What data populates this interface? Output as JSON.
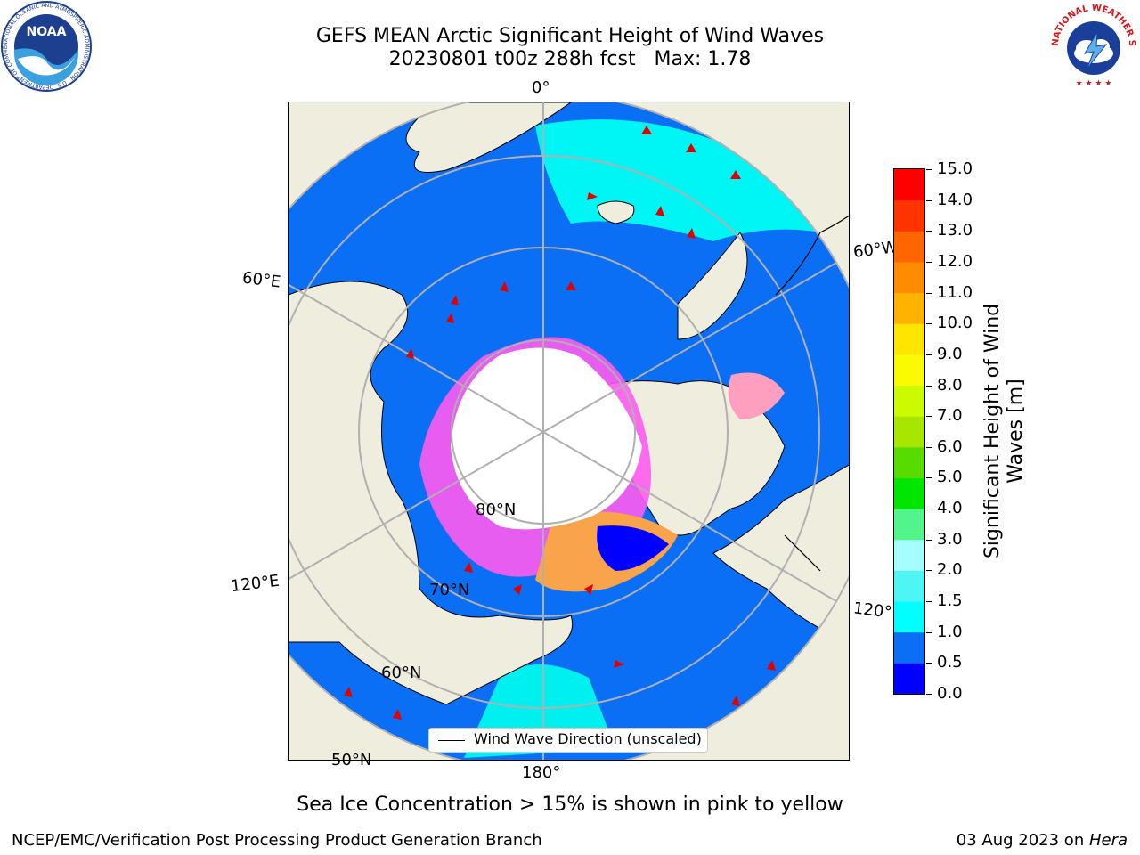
{
  "header": {
    "title_line1": "GEFS MEAN Arctic Significant Height of Wind Waves",
    "title_line2": "20230801 t00z 288h fcst   Max: 1.78"
  },
  "logos": {
    "left_name": "NOAA",
    "left_ring_text": "NATIONAL OCEANIC AND ATMOSPHERIC ADMINISTRATION · U.S. DEPARTMENT OF COMMERCE",
    "right_ring_text": "NATIONAL WEATHER SERVICE"
  },
  "map": {
    "longitude_labels": [
      "0°",
      "60°E",
      "60°W",
      "120°E",
      "120°W",
      "180°"
    ],
    "latitude_labels": [
      "80°N",
      "70°N",
      "60°N",
      "50°N"
    ],
    "legend_text": "Wind Wave Direction (unscaled)"
  },
  "colorbar": {
    "label": "Significant Height of Wind Waves [m]",
    "ticks": [
      "0.0",
      "0.5",
      "1.0",
      "1.5",
      "2.0",
      "3.0",
      "4.0",
      "5.0",
      "6.0",
      "7.0",
      "8.0",
      "9.0",
      "10.0",
      "11.0",
      "12.0",
      "13.0",
      "14.0",
      "15.0"
    ],
    "colors": [
      "#0000ff",
      "#0a6ff5",
      "#00ffff",
      "#4df5f5",
      "#a6fdfd",
      "#52f58c",
      "#00e600",
      "#58dc00",
      "#a8e600",
      "#ccfa00",
      "#fafa00",
      "#ffe500",
      "#ffb300",
      "#ff8c00",
      "#ff6600",
      "#ff3300",
      "#ff0000"
    ]
  },
  "footer": {
    "note": "Sea Ice Concentration > 15% is shown in pink to yellow",
    "left": "NCEP/EMC/Verification Post Processing Product Generation Branch",
    "right_prefix": "03 Aug 2023 on ",
    "right_host": "Hera"
  }
}
